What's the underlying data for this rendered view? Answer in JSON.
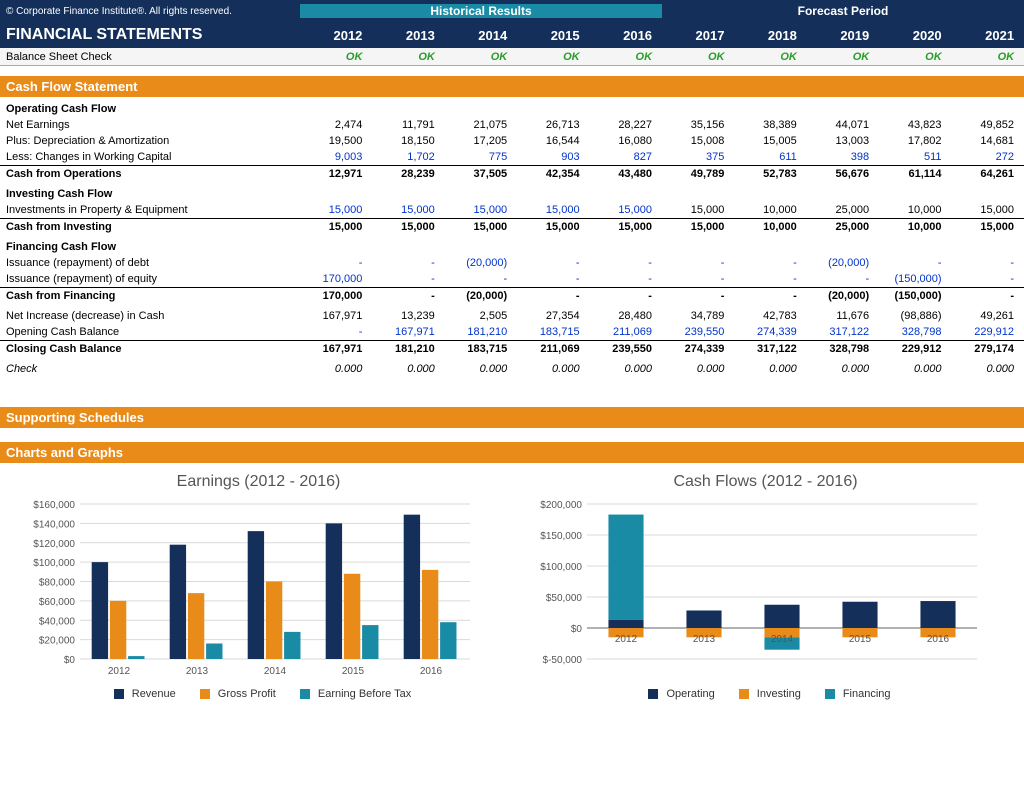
{
  "copyright": "© Corporate Finance Institute®. All rights reserved.",
  "title": "FINANCIAL STATEMENTS",
  "historical_label": "Historical Results",
  "forecast_label": "Forecast Period",
  "years": [
    "2012",
    "2013",
    "2014",
    "2015",
    "2016",
    "2017",
    "2018",
    "2019",
    "2020",
    "2021"
  ],
  "balance_check_label": "Balance Sheet Check",
  "ok": "OK",
  "section_cfs": "Cash Flow Statement",
  "cfs": {
    "op_header": "Operating Cash Flow",
    "net_earnings": {
      "label": "Net Earnings",
      "v": [
        "2,474",
        "11,791",
        "21,075",
        "26,713",
        "28,227",
        "35,156",
        "38,389",
        "44,071",
        "43,823",
        "49,852"
      ]
    },
    "dep_amort": {
      "label": "Plus: Depreciation & Amortization",
      "v": [
        "19,500",
        "18,150",
        "17,205",
        "16,544",
        "16,080",
        "15,008",
        "15,005",
        "13,003",
        "17,802",
        "14,681"
      ]
    },
    "wc": {
      "label": "Less: Changes in Working Capital",
      "v": [
        "9,003",
        "1,702",
        "775",
        "903",
        "827",
        "375",
        "611",
        "398",
        "511",
        "272"
      ],
      "blue": true
    },
    "cfo": {
      "label": "Cash from Operations",
      "v": [
        "12,971",
        "28,239",
        "37,505",
        "42,354",
        "43,480",
        "49,789",
        "52,783",
        "56,676",
        "61,114",
        "64,261"
      ]
    },
    "inv_header": "Investing Cash Flow",
    "capex": {
      "label": "Investments in Property & Equipment",
      "v": [
        "15,000",
        "15,000",
        "15,000",
        "15,000",
        "15,000",
        "15,000",
        "10,000",
        "25,000",
        "10,000",
        "15,000"
      ],
      "blue_first5": true
    },
    "cfi": {
      "label": "Cash from Investing",
      "v": [
        "15,000",
        "15,000",
        "15,000",
        "15,000",
        "15,000",
        "15,000",
        "10,000",
        "25,000",
        "10,000",
        "15,000"
      ]
    },
    "fin_header": "Financing Cash Flow",
    "debt": {
      "label": "Issuance (repayment) of debt",
      "v": [
        "-",
        "-",
        "(20,000)",
        "-",
        "-",
        "-",
        "-",
        "(20,000)",
        "-",
        "-"
      ],
      "blue": true
    },
    "equity": {
      "label": "Issuance (repayment) of equity",
      "v": [
        "170,000",
        "-",
        "-",
        "-",
        "-",
        "-",
        "-",
        "-",
        "(150,000)",
        "-"
      ],
      "blue": true
    },
    "cff": {
      "label": "Cash from Financing",
      "v": [
        "170,000",
        "-",
        "(20,000)",
        "-",
        "-",
        "-",
        "-",
        "(20,000)",
        "(150,000)",
        "-"
      ]
    },
    "net_inc": {
      "label": "Net Increase (decrease) in Cash",
      "v": [
        "167,971",
        "13,239",
        "2,505",
        "27,354",
        "28,480",
        "34,789",
        "42,783",
        "11,676",
        "(98,886)",
        "49,261"
      ]
    },
    "open": {
      "label": "Opening Cash Balance",
      "v": [
        "-",
        "167,971",
        "181,210",
        "183,715",
        "211,069",
        "239,550",
        "274,339",
        "317,122",
        "328,798",
        "229,912"
      ],
      "blue": true
    },
    "close": {
      "label": "Closing Cash Balance",
      "v": [
        "167,971",
        "181,210",
        "183,715",
        "211,069",
        "239,550",
        "274,339",
        "317,122",
        "328,798",
        "229,912",
        "279,174"
      ]
    },
    "check": {
      "label": "Check",
      "v": [
        "0.000",
        "0.000",
        "0.000",
        "0.000",
        "0.000",
        "0.000",
        "0.000",
        "0.000",
        "0.000",
        "0.000"
      ]
    }
  },
  "section_sched": "Supporting Schedules",
  "section_charts": "Charts and Graphs",
  "chart_earnings": {
    "type": "bar",
    "title": "Earnings (2012 - 2016)",
    "categories": [
      "2012",
      "2013",
      "2014",
      "2015",
      "2016"
    ],
    "series": [
      {
        "name": "Revenue",
        "color": "#14305a",
        "values": [
          100000,
          118000,
          132000,
          140000,
          149000
        ]
      },
      {
        "name": "Gross Profit",
        "color": "#e98b18",
        "values": [
          60000,
          68000,
          80000,
          88000,
          92000
        ]
      },
      {
        "name": "Earning Before Tax",
        "color": "#1a8ba5",
        "values": [
          3000,
          16000,
          28000,
          35000,
          38000
        ]
      }
    ],
    "ylim": [
      0,
      160000
    ],
    "ytick_step": 20000,
    "bar_group_width": 0.7,
    "background": "#ffffff",
    "grid_color": "#d9d9d9",
    "axis_color": "#666666",
    "label_fontsize": 11
  },
  "chart_cashflows": {
    "type": "bar-stacked",
    "title": "Cash Flows (2012 - 2016)",
    "categories": [
      "2012",
      "2013",
      "2014",
      "2015",
      "2016"
    ],
    "series": [
      {
        "name": "Operating",
        "color": "#14305a",
        "values": [
          12971,
          28239,
          37505,
          42354,
          43480
        ]
      },
      {
        "name": "Investing",
        "color": "#e98b18",
        "values": [
          -15000,
          -15000,
          -15000,
          -15000,
          -15000
        ]
      },
      {
        "name": "Financing",
        "color": "#1a8ba5",
        "values": [
          170000,
          0,
          -20000,
          0,
          0
        ]
      }
    ],
    "ylim": [
      -50000,
      200000
    ],
    "ytick_step": 50000,
    "bar_width": 0.45,
    "background": "#ffffff",
    "grid_color": "#d9d9d9",
    "axis_color": "#666666",
    "label_fontsize": 11
  }
}
